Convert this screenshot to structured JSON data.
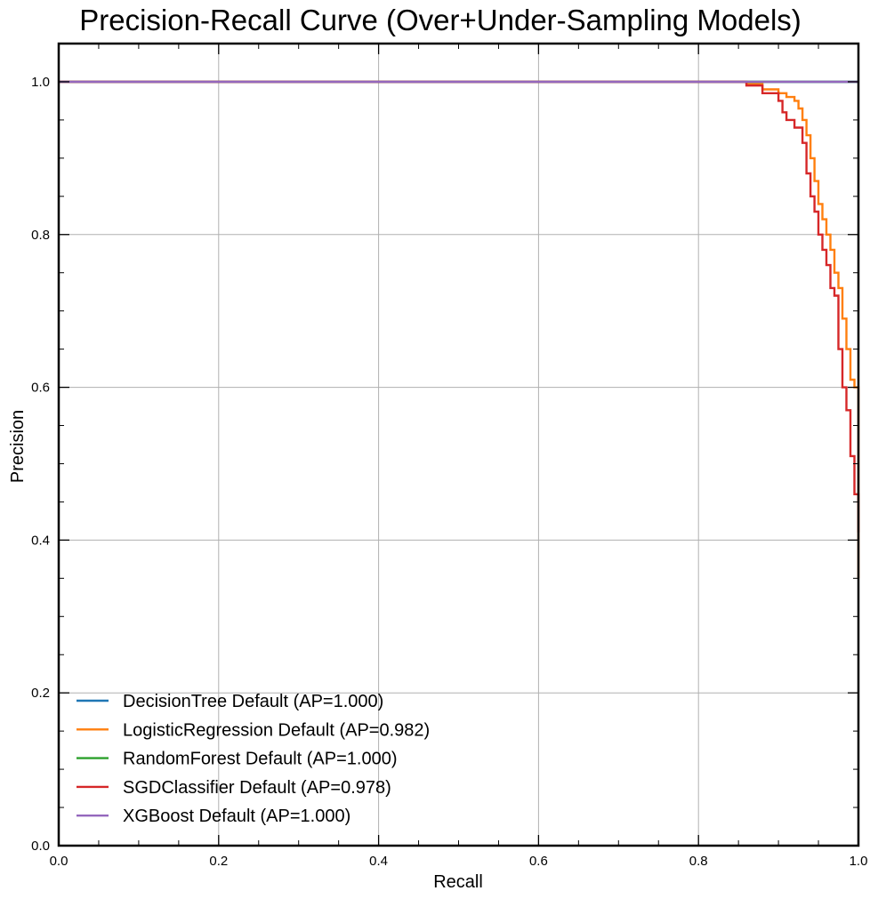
{
  "chart_data": {
    "type": "line",
    "title": "Precision-Recall Curve (Over+Under-Sampling Models)",
    "xlabel": "Recall",
    "ylabel": "Precision",
    "xlim": [
      0.0,
      1.0
    ],
    "ylim": [
      0.0,
      1.05
    ],
    "xticks": [
      "0.0",
      "0.2",
      "0.4",
      "0.6",
      "0.8",
      "1.0"
    ],
    "yticks": [
      "0.0",
      "0.2",
      "0.4",
      "0.6",
      "0.8",
      "1.0"
    ],
    "grid": true,
    "legend_position": "lower-left",
    "series": [
      {
        "name": "DecisionTree Default (AP=1.000)",
        "color": "#1f77b4",
        "x": [
          0.0,
          1.0
        ],
        "y": [
          1.0,
          1.0
        ]
      },
      {
        "name": "LogisticRegression Default (AP=0.982)",
        "color": "#ff7f0e",
        "x": [
          0.0,
          0.8,
          0.86,
          0.88,
          0.9,
          0.91,
          0.92,
          0.925,
          0.93,
          0.935,
          0.94,
          0.945,
          0.95,
          0.955,
          0.96,
          0.965,
          0.97,
          0.975,
          0.98,
          0.985,
          0.99,
          0.995,
          1.0,
          1.0
        ],
        "y": [
          1.0,
          1.0,
          0.997,
          0.99,
          0.985,
          0.98,
          0.975,
          0.965,
          0.95,
          0.93,
          0.9,
          0.87,
          0.84,
          0.82,
          0.8,
          0.78,
          0.75,
          0.73,
          0.69,
          0.65,
          0.61,
          0.6,
          0.5,
          0.35
        ]
      },
      {
        "name": "RandomForest Default (AP=1.000)",
        "color": "#2ca02c",
        "x": [
          0.0,
          1.0
        ],
        "y": [
          1.0,
          1.0
        ]
      },
      {
        "name": "SGDClassifier Default (AP=0.978)",
        "color": "#d62728",
        "x": [
          0.0,
          0.8,
          0.86,
          0.88,
          0.9,
          0.905,
          0.91,
          0.92,
          0.93,
          0.935,
          0.94,
          0.945,
          0.95,
          0.955,
          0.96,
          0.965,
          0.97,
          0.975,
          0.98,
          0.985,
          0.99,
          0.995,
          1.0
        ],
        "y": [
          1.0,
          1.0,
          0.995,
          0.985,
          0.975,
          0.96,
          0.95,
          0.94,
          0.92,
          0.88,
          0.85,
          0.83,
          0.8,
          0.78,
          0.76,
          0.73,
          0.72,
          0.65,
          0.6,
          0.57,
          0.51,
          0.46,
          0.41
        ]
      },
      {
        "name": "XGBoost Default (AP=1.000)",
        "color": "#9467bd",
        "x": [
          0.0,
          1.0
        ],
        "y": [
          1.0,
          1.0
        ]
      }
    ]
  }
}
